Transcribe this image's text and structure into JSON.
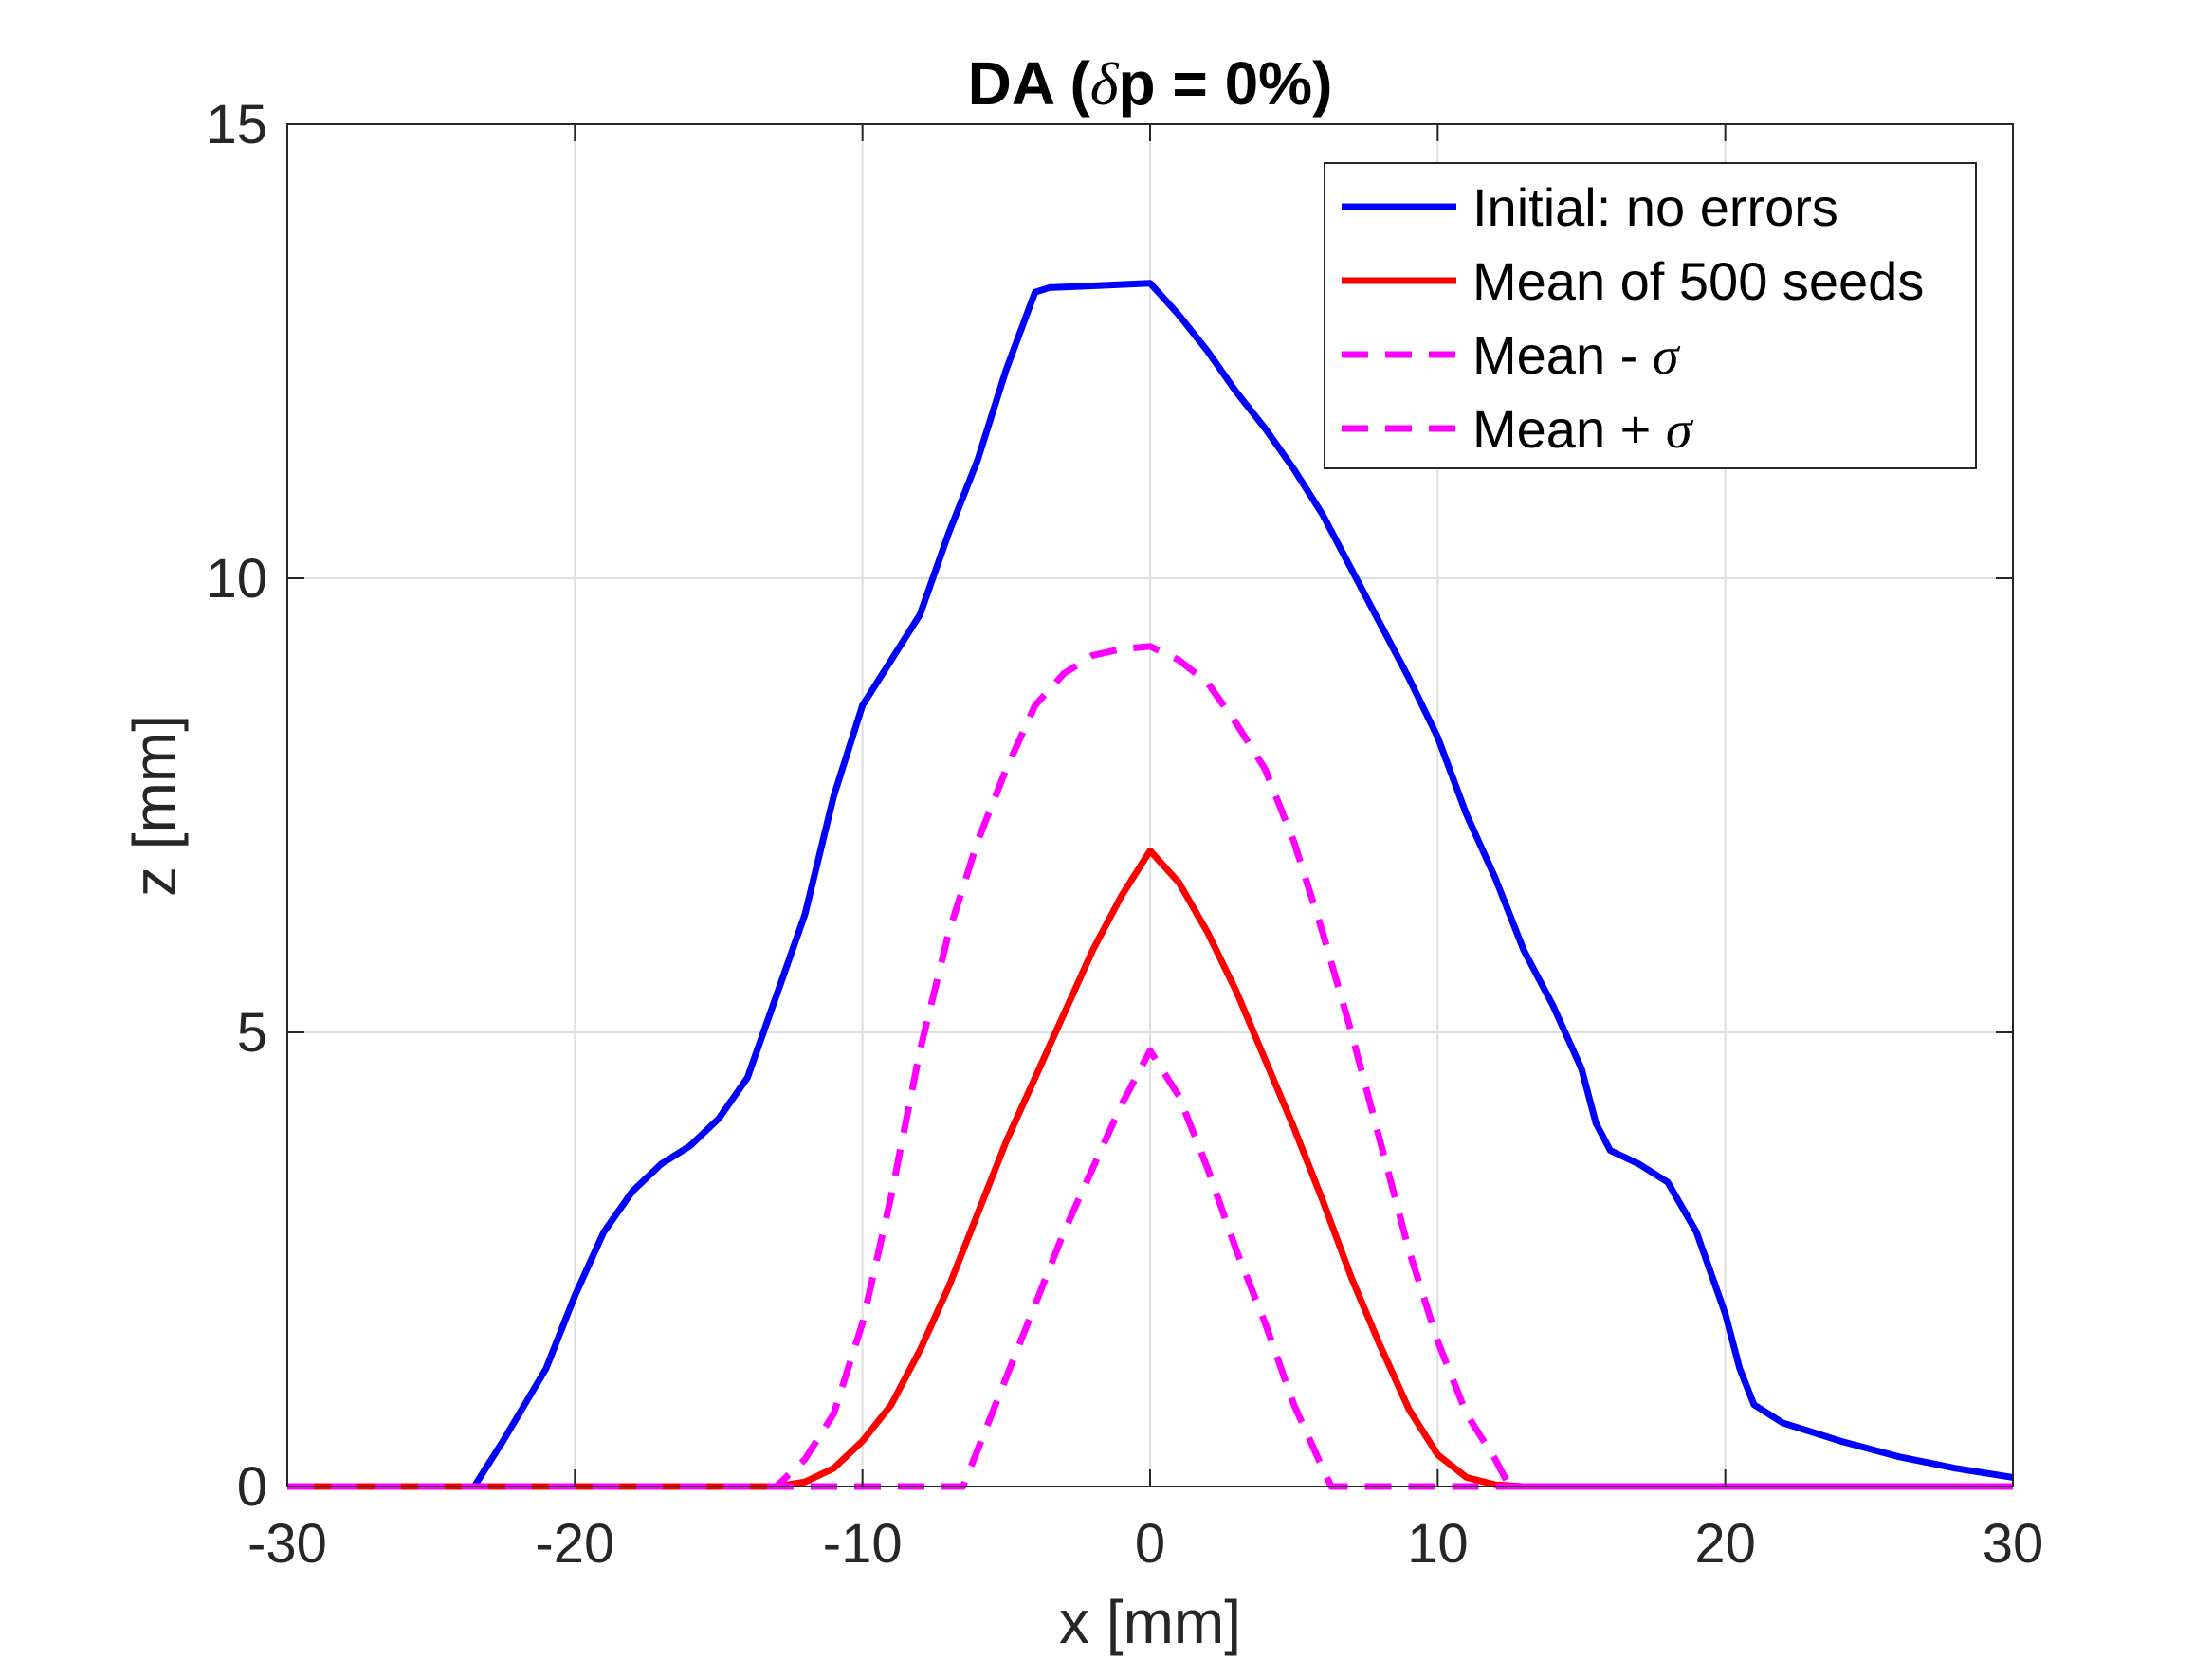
{
  "chart_data": {
    "type": "line",
    "title": "DA (δp = 0%)",
    "title_parts": {
      "pre": "DA (",
      "delta": "δ",
      "post": "p = 0%)"
    },
    "xlabel": "x [mm]",
    "ylabel": "z [mm]",
    "xlim": [
      -30,
      30
    ],
    "ylim": [
      0,
      15
    ],
    "xticks": [
      -30,
      -20,
      -10,
      0,
      10,
      20,
      30
    ],
    "yticks": [
      0,
      5,
      10,
      15
    ],
    "grid": true,
    "legend_position": "top-right",
    "legend": [
      {
        "prefix": "Initial: no errors",
        "symbol": ""
      },
      {
        "prefix": "Mean of 500 seeds",
        "symbol": ""
      },
      {
        "prefix": "Mean - ",
        "symbol": "σ"
      },
      {
        "prefix": "Mean + ",
        "symbol": "σ"
      }
    ],
    "series": [
      {
        "name": "Initial: no errors",
        "color": "#0000ff",
        "style": "solid",
        "x": [
          -30,
          -23.5,
          -22.5,
          -21,
          -20,
          -19,
          -18,
          -17,
          -16,
          -15,
          -14,
          -13,
          -12,
          -11,
          -10,
          -9,
          -8,
          -7,
          -6,
          -5,
          -4,
          -3.5,
          -2,
          0,
          1,
          2,
          3,
          4,
          5,
          6,
          7,
          8,
          9,
          10,
          11,
          12,
          13,
          14,
          15,
          15.5,
          16,
          17,
          18,
          19,
          20,
          20.5,
          21,
          22,
          24,
          26,
          28,
          30
        ],
        "y": [
          0,
          0,
          0.5,
          1.3,
          2.1,
          2.8,
          3.25,
          3.55,
          3.75,
          4.05,
          4.5,
          5.4,
          6.3,
          7.6,
          8.6,
          9.1,
          9.6,
          10.5,
          11.3,
          12.3,
          13.15,
          13.2,
          13.22,
          13.25,
          12.9,
          12.5,
          12.05,
          11.65,
          11.2,
          10.7,
          10.1,
          9.5,
          8.9,
          8.25,
          7.4,
          6.7,
          5.9,
          5.3,
          4.6,
          4.0,
          3.7,
          3.55,
          3.35,
          2.8,
          1.9,
          1.3,
          0.9,
          0.7,
          0.5,
          0.33,
          0.2,
          0.1
        ]
      },
      {
        "name": "Mean of 500 seeds",
        "color": "#ff0000",
        "style": "solid",
        "x": [
          -30,
          -13,
          -12,
          -11,
          -10,
          -9,
          -8,
          -7,
          -6,
          -5,
          -4,
          -3,
          -2,
          -1,
          0,
          1,
          2,
          3,
          4,
          5,
          6,
          7,
          8,
          9,
          10,
          11,
          12,
          13,
          30
        ],
        "y": [
          0,
          0,
          0.05,
          0.2,
          0.5,
          0.9,
          1.5,
          2.2,
          3.0,
          3.8,
          4.5,
          5.2,
          5.9,
          6.5,
          7.0,
          6.65,
          6.1,
          5.45,
          4.7,
          3.95,
          3.15,
          2.3,
          1.55,
          0.85,
          0.35,
          0.1,
          0.02,
          0,
          0
        ]
      },
      {
        "name": "Mean - σ",
        "color": "#ff00ff",
        "style": "dashed",
        "x": [
          -30,
          -13,
          -12,
          -11,
          -10,
          -9,
          -8,
          -7,
          -6,
          -5,
          -4,
          -3,
          -2,
          -1,
          0,
          1,
          2,
          3,
          4,
          5,
          6,
          7,
          8,
          9,
          10,
          11,
          12,
          12.5,
          13,
          30
        ],
        "y": [
          0,
          0,
          0.3,
          0.8,
          1.8,
          3.2,
          4.8,
          6.1,
          7.1,
          7.9,
          8.6,
          8.95,
          9.15,
          9.22,
          9.25,
          9.1,
          8.85,
          8.4,
          7.9,
          7.1,
          6.1,
          5.0,
          3.8,
          2.6,
          1.6,
          0.8,
          0.3,
          0,
          0,
          0
        ]
      },
      {
        "name": "Mean + σ",
        "color": "#ff00ff",
        "style": "dashed",
        "x": [
          -30,
          -6.5,
          -6,
          -5,
          -4,
          -3,
          -2,
          -1,
          0,
          1,
          2,
          3,
          4,
          5,
          6,
          6.3,
          30
        ],
        "y": [
          0,
          0,
          0.4,
          1.2,
          2.0,
          2.8,
          3.5,
          4.2,
          4.8,
          4.3,
          3.5,
          2.6,
          1.8,
          0.9,
          0.2,
          0,
          0
        ]
      }
    ]
  }
}
